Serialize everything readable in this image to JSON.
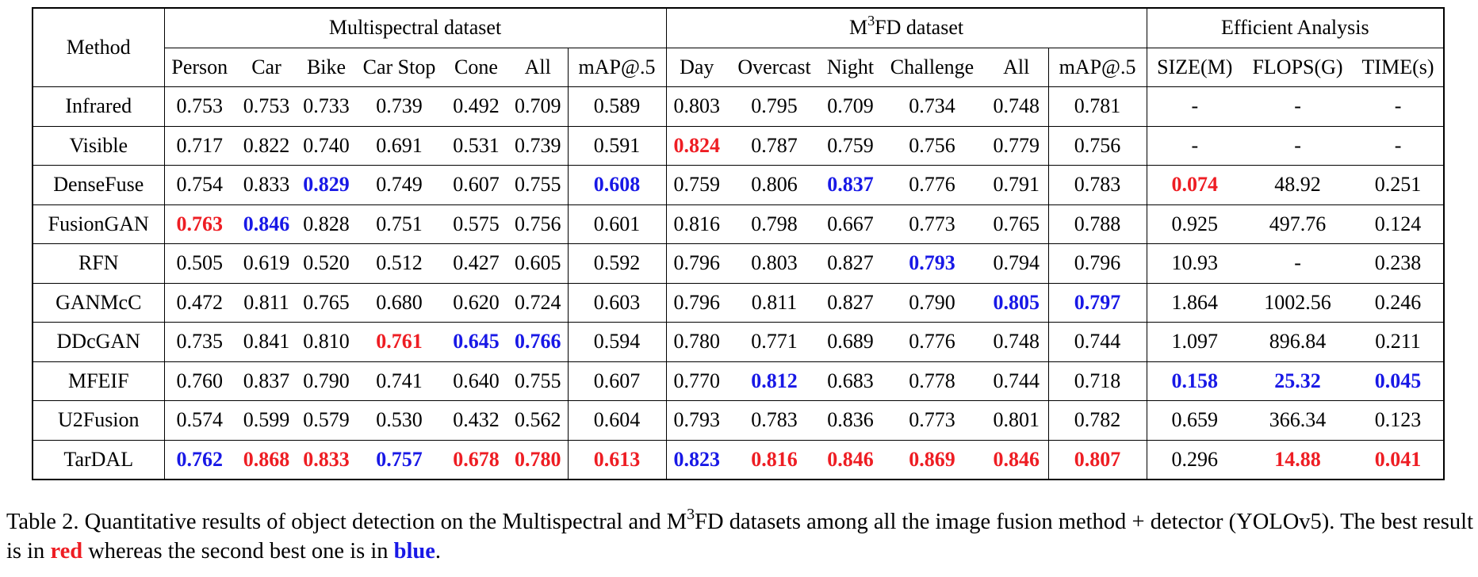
{
  "table": {
    "method_header": "Method",
    "groups": [
      {
        "title": [
          {
            "text": "Multispectral dataset"
          }
        ],
        "columns": [
          "Person",
          "Car",
          "Bike",
          "Car Stop",
          "Cone",
          "All",
          "mAP@.5"
        ]
      },
      {
        "title": [
          {
            "text": "M"
          },
          {
            "text": "3",
            "sup": true
          },
          {
            "text": "FD dataset"
          }
        ],
        "columns": [
          "Day",
          "Overcast",
          "Night",
          "Challenge",
          "All",
          "mAP@.5"
        ]
      },
      {
        "title": [
          {
            "text": "Efficient Analysis"
          }
        ],
        "columns": [
          "SIZE(M)",
          "FLOPS(G)",
          "TIME(s)"
        ]
      }
    ],
    "rows": [
      {
        "method": "Infrared",
        "cells": [
          "0.753",
          "0.753",
          "0.733",
          "0.739",
          "0.492",
          "0.709",
          "0.589",
          "0.803",
          "0.795",
          "0.709",
          "0.734",
          "0.748",
          "0.781",
          "-",
          "-",
          "-"
        ]
      },
      {
        "method": "Visible",
        "cells": [
          "0.717",
          "0.822",
          "0.740",
          "0.691",
          "0.531",
          "0.739",
          "0.591",
          {
            "text": "0.824",
            "color": "#ee1d23"
          },
          "0.787",
          "0.759",
          "0.756",
          "0.779",
          "0.756",
          "-",
          "-",
          "-"
        ]
      },
      {
        "method": "DenseFuse",
        "cells": [
          "0.754",
          "0.833",
          {
            "text": "0.829",
            "color": "#1818e6"
          },
          "0.749",
          "0.607",
          "0.755",
          {
            "text": "0.608",
            "color": "#1818e6"
          },
          "0.759",
          "0.806",
          {
            "text": "0.837",
            "color": "#1818e6"
          },
          "0.776",
          "0.791",
          "0.783",
          {
            "text": "0.074",
            "color": "#ee1d23"
          },
          "48.92",
          "0.251"
        ]
      },
      {
        "method": "FusionGAN",
        "cells": [
          {
            "text": "0.763",
            "color": "#ee1d23"
          },
          {
            "text": "0.846",
            "color": "#1818e6"
          },
          "0.828",
          "0.751",
          "0.575",
          "0.756",
          "0.601",
          "0.816",
          "0.798",
          "0.667",
          "0.773",
          "0.765",
          "0.788",
          "0.925",
          "497.76",
          "0.124"
        ]
      },
      {
        "method": "RFN",
        "cells": [
          "0.505",
          "0.619",
          "0.520",
          "0.512",
          "0.427",
          "0.605",
          "0.592",
          "0.796",
          "0.803",
          "0.827",
          {
            "text": "0.793",
            "color": "#1818e6"
          },
          "0.794",
          "0.796",
          "10.93",
          "-",
          "0.238"
        ]
      },
      {
        "method": "GANMcC",
        "cells": [
          "0.472",
          "0.811",
          "0.765",
          "0.680",
          "0.620",
          "0.724",
          "0.603",
          "0.796",
          "0.811",
          "0.827",
          "0.790",
          {
            "text": "0.805",
            "color": "#1818e6"
          },
          {
            "text": "0.797",
            "color": "#1818e6"
          },
          "1.864",
          "1002.56",
          "0.246"
        ]
      },
      {
        "method": "DDcGAN",
        "cells": [
          "0.735",
          "0.841",
          "0.810",
          {
            "text": "0.761",
            "color": "#ee1d23"
          },
          {
            "text": "0.645",
            "color": "#1818e6"
          },
          {
            "text": "0.766",
            "color": "#1818e6"
          },
          "0.594",
          "0.780",
          "0.771",
          "0.689",
          "0.776",
          "0.748",
          "0.744",
          "1.097",
          "896.84",
          "0.211"
        ]
      },
      {
        "method": "MFEIF",
        "cells": [
          "0.760",
          "0.837",
          "0.790",
          "0.741",
          "0.640",
          "0.755",
          "0.607",
          "0.770",
          {
            "text": "0.812",
            "color": "#1818e6"
          },
          "0.683",
          "0.778",
          "0.744",
          "0.718",
          {
            "text": "0.158",
            "color": "#1818e6"
          },
          {
            "text": "25.32",
            "color": "#1818e6"
          },
          {
            "text": "0.045",
            "color": "#1818e6"
          }
        ]
      },
      {
        "method": "U2Fusion",
        "cells": [
          "0.574",
          "0.599",
          "0.579",
          "0.530",
          "0.432",
          "0.562",
          "0.604",
          "0.793",
          "0.783",
          "0.836",
          "0.773",
          "0.801",
          "0.782",
          "0.659",
          "366.34",
          "0.123"
        ]
      },
      {
        "method": "TarDAL",
        "cells": [
          {
            "text": "0.762",
            "color": "#1818e6"
          },
          {
            "text": "0.868",
            "color": "#ee1d23"
          },
          {
            "text": "0.833",
            "color": "#ee1d23"
          },
          {
            "text": "0.757",
            "color": "#1818e6"
          },
          {
            "text": "0.678",
            "color": "#ee1d23"
          },
          {
            "text": "0.780",
            "color": "#ee1d23"
          },
          {
            "text": "0.613",
            "color": "#ee1d23"
          },
          {
            "text": "0.823",
            "color": "#1818e6"
          },
          {
            "text": "0.816",
            "color": "#ee1d23"
          },
          {
            "text": "0.846",
            "color": "#ee1d23"
          },
          {
            "text": "0.869",
            "color": "#ee1d23"
          },
          {
            "text": "0.846",
            "color": "#ee1d23"
          },
          {
            "text": "0.807",
            "color": "#ee1d23"
          },
          "0.296",
          {
            "text": "14.88",
            "color": "#ee1d23"
          },
          {
            "text": "0.041",
            "color": "#ee1d23"
          }
        ]
      }
    ]
  },
  "caption": [
    {
      "text": "Table 2.  Quantitative results of object detection on the Multispectral and M"
    },
    {
      "text": "3",
      "sup": true
    },
    {
      "text": "FD datasets among all the image fusion method + detector (YOLOv5). The best result is in "
    },
    {
      "text": "red",
      "color": "#ee1d23"
    },
    {
      "text": " whereas the second best one is in "
    },
    {
      "text": "blue",
      "color": "#1818e6"
    },
    {
      "text": "."
    }
  ]
}
